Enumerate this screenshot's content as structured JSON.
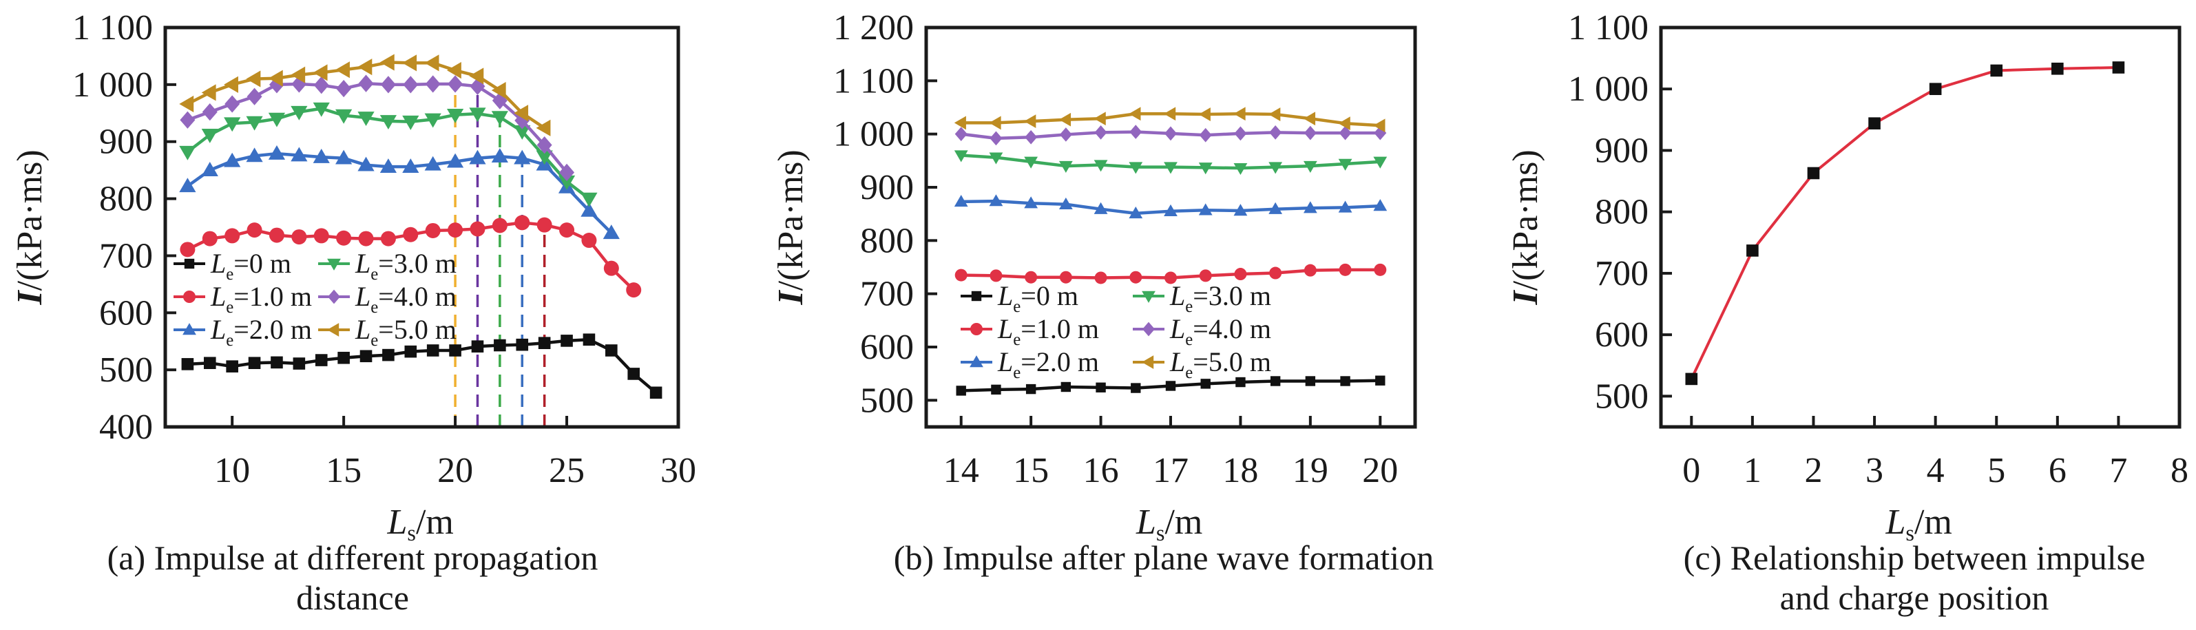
{
  "chart_data": [
    {
      "type": "line",
      "caption": [
        "(a) Impulse at different propagation",
        "distance"
      ],
      "xlabel": {
        "main": "L",
        "sub": "s",
        "unit": "/m"
      },
      "ylabel": {
        "main": "I",
        "unit": "/(kPa·ms)"
      },
      "xlim": [
        7,
        30
      ],
      "ylim": [
        400,
        1100
      ],
      "xticks": [
        10,
        15,
        20,
        25,
        30
      ],
      "yticks": [
        400,
        500,
        600,
        700,
        800,
        900,
        1000,
        1100
      ],
      "ytick_labels": [
        "400",
        "500",
        "600",
        "700",
        "800",
        "900",
        "1 000",
        "1 100"
      ],
      "grid": false,
      "legend_position": "lower-left",
      "series": [
        {
          "name": "Le=0 m",
          "label_main": "L",
          "label_sub": "e",
          "label_rest": "=0 m",
          "color": "#111111",
          "marker": "square",
          "x": [
            8,
            9,
            10,
            11,
            12,
            13,
            14,
            15,
            16,
            17,
            18,
            19,
            20,
            21,
            22,
            23,
            24,
            25,
            26,
            27,
            28,
            29
          ],
          "y": [
            510,
            512,
            506,
            512,
            513,
            511,
            517,
            521,
            524,
            526,
            532,
            534,
            534,
            541,
            543,
            544,
            547,
            551,
            553,
            534,
            493,
            460
          ]
        },
        {
          "name": "Le=1.0 m",
          "label_main": "L",
          "label_sub": "e",
          "label_rest": "=1.0 m",
          "color": "#E03245",
          "marker": "circle",
          "x": [
            8,
            9,
            10,
            11,
            12,
            13,
            14,
            15,
            16,
            17,
            18,
            19,
            20,
            21,
            22,
            23,
            24,
            25,
            26,
            27,
            28
          ],
          "y": [
            711,
            730,
            735,
            745,
            736,
            733,
            735,
            731,
            730,
            730,
            737,
            744,
            745,
            747,
            753,
            758,
            754,
            745,
            727,
            678,
            640
          ]
        },
        {
          "name": "Le=2.0 m",
          "label_main": "L",
          "label_sub": "e",
          "label_rest": "=2.0 m",
          "color": "#3A6FC4",
          "marker": "triangle-up",
          "x": [
            8,
            9,
            10,
            11,
            12,
            13,
            14,
            15,
            16,
            17,
            18,
            19,
            20,
            21,
            22,
            23,
            24,
            25,
            26,
            27
          ],
          "y": [
            822,
            850,
            866,
            875,
            879,
            876,
            873,
            871,
            859,
            856,
            856,
            860,
            865,
            871,
            874,
            871,
            860,
            820,
            779,
            740
          ]
        },
        {
          "name": "Le=3.0 m",
          "label_main": "L",
          "label_sub": "e",
          "label_rest": "=3.0 m",
          "color": "#3BAA5C",
          "marker": "triangle-down",
          "x": [
            8,
            9,
            10,
            11,
            12,
            13,
            14,
            15,
            16,
            17,
            18,
            19,
            20,
            21,
            22,
            23,
            24,
            25,
            26
          ],
          "y": [
            882,
            912,
            932,
            934,
            940,
            952,
            958,
            946,
            942,
            936,
            935,
            939,
            947,
            949,
            943,
            918,
            874,
            830,
            800
          ]
        },
        {
          "name": "Le=4.0 m",
          "label_main": "L",
          "label_sub": "e",
          "label_rest": "=4.0 m",
          "color": "#9266BE",
          "marker": "diamond",
          "x": [
            8,
            9,
            10,
            11,
            12,
            13,
            14,
            15,
            16,
            17,
            18,
            19,
            20,
            21,
            22,
            23,
            24,
            25
          ],
          "y": [
            938,
            952,
            966,
            979,
            1000,
            1001,
            999,
            993,
            1002,
            1000,
            1000,
            1001,
            1001,
            997,
            972,
            937,
            894,
            846
          ]
        },
        {
          "name": "Le=5.0 m",
          "label_main": "L",
          "label_sub": "e",
          "label_rest": "=5.0 m",
          "color": "#BE8C22",
          "marker": "triangle-left",
          "x": [
            8,
            9,
            10,
            11,
            12,
            13,
            14,
            15,
            16,
            17,
            18,
            19,
            20,
            21,
            22,
            23,
            24
          ],
          "y": [
            966,
            986,
            1000,
            1010,
            1011,
            1017,
            1021,
            1026,
            1031,
            1039,
            1038,
            1038,
            1025,
            1015,
            990,
            950,
            924
          ]
        }
      ],
      "reference_lines": [
        {
          "x": 20,
          "color": "#F0B030",
          "style": "dashed"
        },
        {
          "x": 21,
          "color": "#6A35A0",
          "style": "dashed"
        },
        {
          "x": 22,
          "color": "#3BAA4A",
          "style": "dashed"
        },
        {
          "x": 23,
          "color": "#3A6FC0",
          "style": "dashed"
        },
        {
          "x": 24,
          "color": "#B0202A",
          "style": "dashed"
        }
      ]
    },
    {
      "type": "line",
      "caption": [
        "(b) Impulse after plane wave formation"
      ],
      "xlabel": {
        "main": "L",
        "sub": "s",
        "unit": "/m"
      },
      "ylabel": {
        "main": "I",
        "unit": "/(kPa·ms)"
      },
      "xlim": [
        13.5,
        20.5
      ],
      "ylim": [
        450,
        1200
      ],
      "xticks": [
        14,
        15,
        16,
        17,
        18,
        19,
        20
      ],
      "yticks": [
        500,
        600,
        700,
        800,
        900,
        1000,
        1100,
        1200
      ],
      "ytick_labels": [
        "500",
        "600",
        "700",
        "800",
        "900",
        "1 000",
        "1 100",
        "1 200"
      ],
      "grid": false,
      "legend_position": "lower-left",
      "series": [
        {
          "name": "Le=0 m",
          "label_main": "L",
          "label_sub": "e",
          "label_rest": "=0 m",
          "color": "#111111",
          "marker": "square",
          "x": [
            14,
            14.5,
            15,
            15.5,
            16,
            16.5,
            17,
            17.5,
            18,
            18.5,
            19,
            19.5,
            20
          ],
          "y": [
            518,
            520,
            521,
            525,
            524,
            523,
            527,
            531,
            534,
            536,
            536,
            536,
            537
          ]
        },
        {
          "name": "Le=1.0 m",
          "label_main": "L",
          "label_sub": "e",
          "label_rest": "=1.0 m",
          "color": "#E03245",
          "marker": "circle",
          "x": [
            14,
            14.5,
            15,
            15.5,
            16,
            16.5,
            17,
            17.5,
            18,
            18.5,
            19,
            19.5,
            20
          ],
          "y": [
            735,
            734,
            731,
            731,
            730,
            731,
            730,
            734,
            737,
            739,
            744,
            745,
            745
          ]
        },
        {
          "name": "Le=2.0 m",
          "label_main": "L",
          "label_sub": "e",
          "label_rest": "=2.0 m",
          "color": "#3A6FC4",
          "marker": "triangle-up",
          "x": [
            14,
            14.5,
            15,
            15.5,
            16,
            16.5,
            17,
            17.5,
            18,
            18.5,
            19,
            19.5,
            20
          ],
          "y": [
            873,
            874,
            870,
            868,
            859,
            851,
            855,
            857,
            856,
            859,
            861,
            862,
            865
          ]
        },
        {
          "name": "Le=3.0 m",
          "label_main": "L",
          "label_sub": "e",
          "label_rest": "=3.0 m",
          "color": "#3BAA5C",
          "marker": "triangle-down",
          "x": [
            14,
            14.5,
            15,
            15.5,
            16,
            16.5,
            17,
            17.5,
            18,
            18.5,
            19,
            19.5,
            20
          ],
          "y": [
            960,
            956,
            948,
            940,
            942,
            938,
            938,
            937,
            936,
            938,
            940,
            944,
            948
          ]
        },
        {
          "name": "Le=4.0 m",
          "label_main": "L",
          "label_sub": "e",
          "label_rest": "=4.0 m",
          "color": "#9266BE",
          "marker": "diamond",
          "x": [
            14,
            14.5,
            15,
            15.5,
            16,
            16.5,
            17,
            17.5,
            18,
            18.5,
            19,
            19.5,
            20
          ],
          "y": [
            1000,
            992,
            994,
            999,
            1003,
            1004,
            1001,
            998,
            1001,
            1003,
            1002,
            1002,
            1002
          ]
        },
        {
          "name": "Le=5.0 m",
          "label_main": "L",
          "label_sub": "e",
          "label_rest": "=5.0 m",
          "color": "#BE8C22",
          "marker": "triangle-left",
          "x": [
            14,
            14.5,
            15,
            15.5,
            16,
            16.5,
            17,
            17.5,
            18,
            18.5,
            19,
            19.5,
            20
          ],
          "y": [
            1021,
            1021,
            1024,
            1027,
            1029,
            1038,
            1038,
            1037,
            1038,
            1037,
            1029,
            1020,
            1016
          ]
        }
      ],
      "reference_lines": []
    },
    {
      "type": "line",
      "caption": [
        "(c) Relationship between impulse",
        "and charge position"
      ],
      "xlabel": {
        "main": "L",
        "sub": "s",
        "unit": "/m"
      },
      "ylabel": {
        "main": "I",
        "unit": "/(kPa·ms)"
      },
      "xlim": [
        -0.5,
        8
      ],
      "ylim": [
        450,
        1100
      ],
      "xticks": [
        0,
        1,
        2,
        3,
        4,
        5,
        6,
        7,
        8
      ],
      "yticks": [
        500,
        600,
        700,
        800,
        900,
        1000,
        1100
      ],
      "ytick_labels": [
        "500",
        "600",
        "700",
        "800",
        "900",
        "1 000",
        "1 100"
      ],
      "grid": false,
      "legend_position": "none",
      "series": [
        {
          "name": "Impulse",
          "color": "#E03040",
          "marker": "square",
          "marker_color": "#111111",
          "x": [
            0,
            1,
            2,
            3,
            4,
            5,
            6,
            7
          ],
          "y": [
            528,
            737,
            863,
            944,
            1000,
            1030,
            1033,
            1035
          ]
        }
      ],
      "reference_lines": []
    }
  ]
}
